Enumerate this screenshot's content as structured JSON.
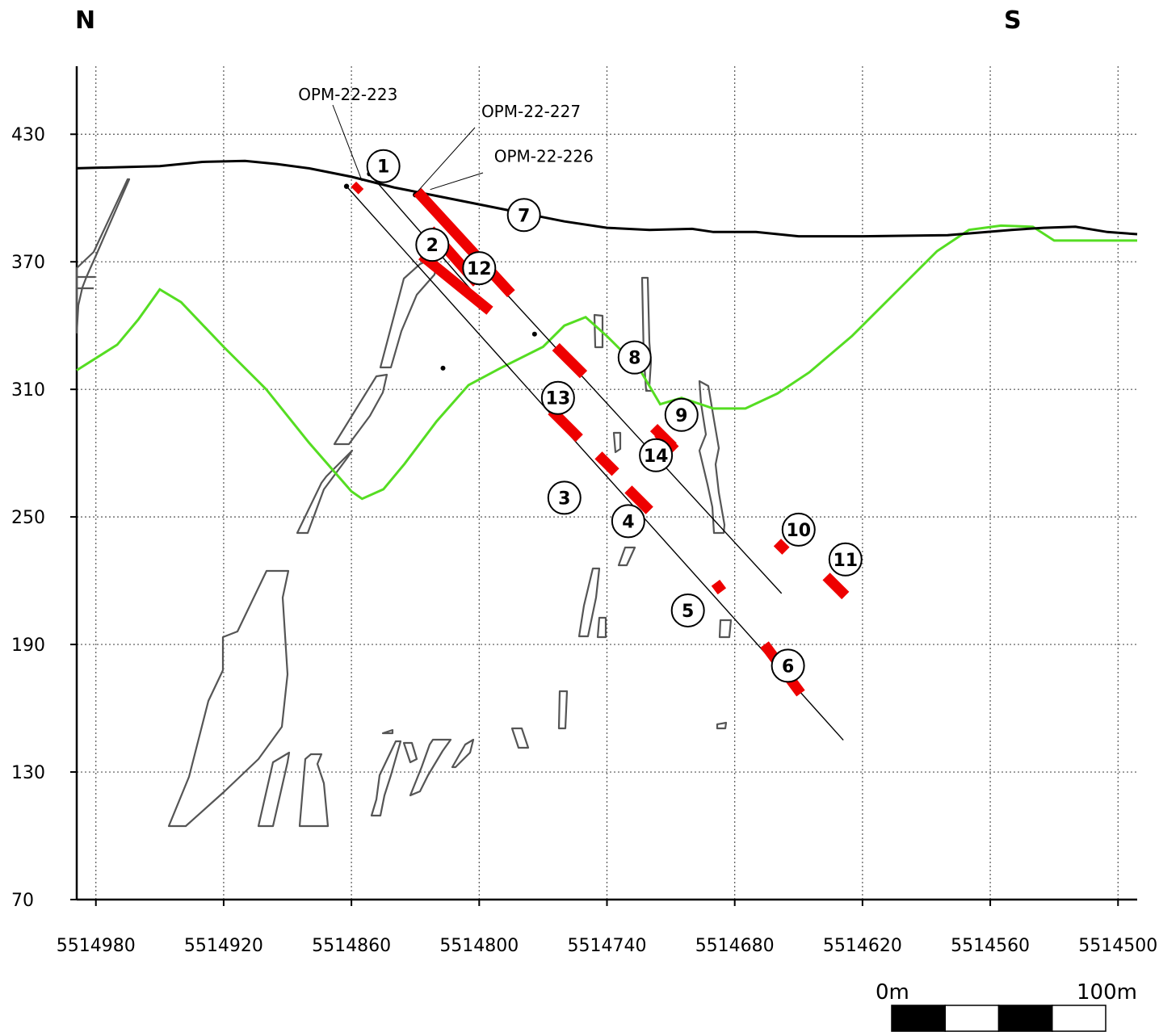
{
  "compass": {
    "north": "N",
    "south": "S"
  },
  "axes": {
    "x_ticks": [
      5514980,
      5514920,
      5514860,
      5514800,
      5514740,
      5514680,
      5514620,
      5514560,
      5514500
    ],
    "y_ticks": [
      430,
      370,
      310,
      250,
      190,
      130,
      70
    ],
    "x_range": [
      5514989,
      5514491
    ],
    "y_range": [
      70,
      462
    ],
    "grid": true
  },
  "drillholes": [
    {
      "label": "OPM-22-223",
      "collar": [
        5514851.5,
        411.4
      ],
      "end": [
        5514797,
        349
      ]
    },
    {
      "label": "OPM-22-227",
      "collar": [
        5514862.3,
        405.5
      ],
      "end": [
        5514629,
        145
      ]
    },
    {
      "label": "OPM-22-226",
      "collar": [
        5514830,
        401.5
      ],
      "end": [
        5514658,
        214
      ]
    }
  ],
  "intercepts": [
    {
      "label": "1",
      "from": [
        5514856,
        406
      ],
      "to": [
        5514858.5,
        403.5
      ]
    },
    {
      "label": "2",
      "from": [
        5514823,
        385
      ],
      "to": [
        5514801,
        360
      ]
    },
    {
      "label": "12",
      "from": [
        5514827,
        373
      ],
      "to": [
        5514795,
        347
      ]
    },
    {
      "label": "3",
      "from": [
        5514744,
        279
      ],
      "to": [
        5514736,
        271
      ]
    },
    {
      "label": "4",
      "from": [
        5514730,
        263
      ],
      "to": [
        5514720,
        253
      ]
    },
    {
      "label": "5",
      "from": [
        5514689,
        219
      ],
      "to": [
        5514686,
        215
      ]
    },
    {
      "label": "6",
      "from": [
        5514666,
        190
      ],
      "to": [
        5514649,
        167
      ]
    },
    {
      "label": "13",
      "from": [
        5514766,
        300
      ],
      "to": [
        5514753,
        287
      ]
    },
    {
      "label": "7",
      "from": [
        5514829,
        403
      ],
      "to": [
        5514785,
        355
      ]
    },
    {
      "label": "8",
      "from": [
        5514764,
        330
      ],
      "to": [
        5514751,
        317
      ]
    },
    {
      "label": "14",
      "from": [
        5514718,
        292
      ],
      "to": [
        5514709,
        283
      ]
    },
    {
      "label": "9",
      "from": [
        5514716,
        289.5
      ],
      "to": [
        5514708,
        281.5
      ]
    },
    {
      "label": "10",
      "from": [
        5514660,
        238
      ],
      "to": [
        5514656,
        234
      ]
    },
    {
      "label": "11",
      "from": [
        5514637,
        222
      ],
      "to": [
        5514628,
        213
      ]
    }
  ],
  "callouts": [
    {
      "label": "1",
      "at": [
        5514845,
        415
      ]
    },
    {
      "label": "2",
      "at": [
        5514822,
        378
      ]
    },
    {
      "label": "12",
      "at": [
        5514800,
        367
      ]
    },
    {
      "label": "7",
      "at": [
        5514779,
        392
      ]
    },
    {
      "label": "8",
      "at": [
        5514727,
        325
      ]
    },
    {
      "label": "13",
      "at": [
        5514763,
        306
      ]
    },
    {
      "label": "9",
      "at": [
        5514705,
        298
      ]
    },
    {
      "label": "14",
      "at": [
        5514717,
        279
      ]
    },
    {
      "label": "3",
      "at": [
        5514760,
        259
      ]
    },
    {
      "label": "4",
      "at": [
        5514730,
        248
      ]
    },
    {
      "label": "10",
      "at": [
        5514650,
        244
      ]
    },
    {
      "label": "11",
      "at": [
        5514628,
        230
      ]
    },
    {
      "label": "5",
      "at": [
        5514702,
        206
      ]
    },
    {
      "label": "6",
      "at": [
        5514655,
        180
      ]
    }
  ],
  "hole_labels": [
    {
      "label": "OPM-22-223",
      "at": [
        5514885,
        446
      ],
      "to": [
        5514855,
        408
      ]
    },
    {
      "label": "OPM-22-227",
      "at": [
        5514799,
        438
      ],
      "to": [
        5514829,
        403
      ]
    },
    {
      "label": "OPM-22-226",
      "at": [
        5514793,
        417
      ],
      "to": [
        5514823,
        404
      ]
    }
  ],
  "topography": [
    [
      5514989,
      414
    ],
    [
      5514970,
      414.5
    ],
    [
      5514950,
      415
    ],
    [
      5514930,
      417
    ],
    [
      5514910,
      417.5
    ],
    [
      5514895,
      416
    ],
    [
      5514880,
      414
    ],
    [
      5514860,
      410
    ],
    [
      5514840,
      405
    ],
    [
      5514820,
      401
    ],
    [
      5514800,
      397
    ],
    [
      5514780,
      393
    ],
    [
      5514760,
      389
    ],
    [
      5514740,
      386
    ],
    [
      5514720,
      385
    ],
    [
      5514700,
      385.5
    ],
    [
      5514690,
      384
    ],
    [
      5514670,
      384
    ],
    [
      5514650,
      382
    ],
    [
      5514620,
      382
    ],
    [
      5514580,
      382.5
    ],
    [
      5514550,
      385
    ],
    [
      5514535,
      386
    ],
    [
      5514520,
      386.5
    ],
    [
      5514505,
      384
    ],
    [
      5514491,
      383
    ]
  ],
  "surface_green": [
    [
      5514989,
      319
    ],
    [
      5514970,
      331
    ],
    [
      5514960,
      343
    ],
    [
      5514950,
      357
    ],
    [
      5514940,
      351
    ],
    [
      5514920,
      330
    ],
    [
      5514900,
      310
    ],
    [
      5514880,
      285
    ],
    [
      5514860,
      262
    ],
    [
      5514855,
      258.5
    ],
    [
      5514845,
      263
    ],
    [
      5514835,
      275
    ],
    [
      5514820,
      295
    ],
    [
      5514805,
      312
    ],
    [
      5514790,
      320
    ],
    [
      5514770,
      330
    ],
    [
      5514760,
      340
    ],
    [
      5514750,
      344
    ],
    [
      5514740,
      335
    ],
    [
      5514725,
      320
    ],
    [
      5514715,
      303
    ],
    [
      5514705,
      306
    ],
    [
      5514690,
      301
    ],
    [
      5514675,
      301
    ],
    [
      5514660,
      308
    ],
    [
      5514645,
      318
    ],
    [
      5514625,
      335
    ],
    [
      5514600,
      360
    ],
    [
      5514585,
      375
    ],
    [
      5514570,
      385
    ],
    [
      5514555,
      387
    ],
    [
      5514540,
      386.5
    ],
    [
      5514530,
      380
    ],
    [
      5514491,
      380
    ]
  ],
  "colors": {
    "intercept": "#ee0000",
    "topography": "#000000",
    "surface": "#55dd22",
    "outline": "#555555",
    "grid": "#555555"
  },
  "scale_bar": {
    "start_label": "0m",
    "end_label": "100m"
  }
}
